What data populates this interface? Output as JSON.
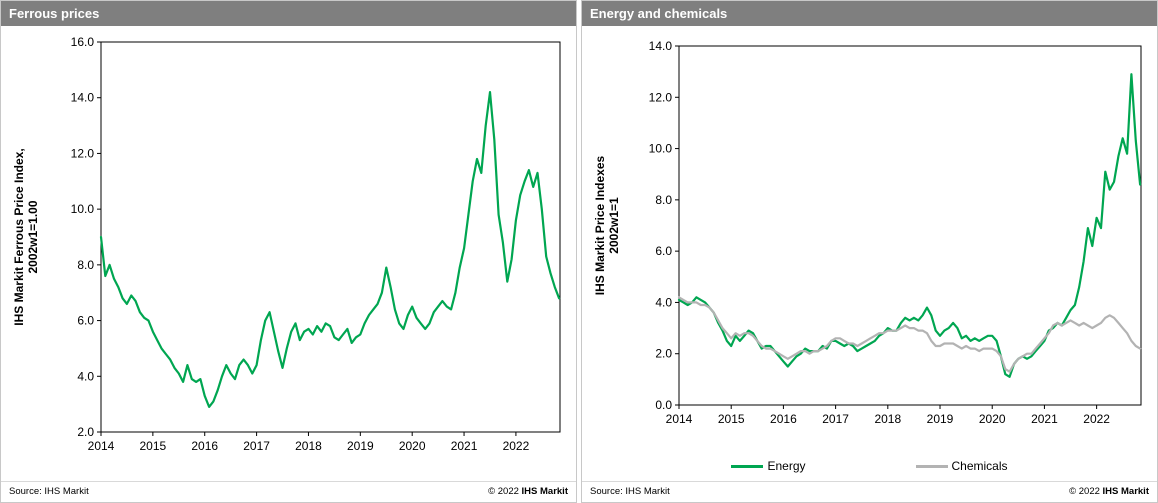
{
  "colors": {
    "header_bg": "#7f7f7f",
    "green": "#00a651",
    "gray": "#b3b3b3",
    "axis": "#000000"
  },
  "panels": [
    {
      "title": "Ferrous prices",
      "source": "Source: IHS Markit",
      "copyright_prefix": "© 2022",
      "copyright_brand": "IHS Markit"
    },
    {
      "title": "Energy and chemicals",
      "source": "Source: IHS Markit",
      "copyright_prefix": "© 2022",
      "copyright_brand": "IHS Markit"
    }
  ],
  "chart_data": [
    {
      "type": "line",
      "title": "Ferrous prices",
      "xlabel": "",
      "ylabel_lines": [
        "IHS Markit Ferrous Price Index,",
        "2002w1=1.00"
      ],
      "xlim": [
        2014,
        2022.85
      ],
      "ylim": [
        2.0,
        16.0
      ],
      "ytick_step": 2.0,
      "xticks": [
        2014,
        2015,
        2016,
        2017,
        2018,
        2019,
        2020,
        2021,
        2022
      ],
      "grid": false,
      "legend_position": "none",
      "x_start": 2014.0,
      "x_step": 0.0833333,
      "series": [
        {
          "name": "Ferrous",
          "color": "#00a651",
          "values": [
            9.0,
            7.6,
            8.0,
            7.5,
            7.2,
            6.8,
            6.6,
            6.9,
            6.7,
            6.3,
            6.1,
            6.0,
            5.6,
            5.3,
            5.0,
            4.8,
            4.6,
            4.3,
            4.1,
            3.8,
            4.4,
            3.9,
            3.8,
            3.9,
            3.3,
            2.9,
            3.1,
            3.5,
            4.0,
            4.4,
            4.1,
            3.9,
            4.4,
            4.6,
            4.4,
            4.1,
            4.4,
            5.3,
            6.0,
            6.3,
            5.6,
            4.9,
            4.3,
            5.0,
            5.6,
            5.9,
            5.3,
            5.6,
            5.7,
            5.5,
            5.8,
            5.6,
            5.9,
            5.8,
            5.4,
            5.3,
            5.5,
            5.7,
            5.2,
            5.4,
            5.5,
            5.9,
            6.2,
            6.4,
            6.6,
            7.0,
            7.9,
            7.2,
            6.4,
            5.9,
            5.7,
            6.2,
            6.5,
            6.1,
            5.9,
            5.7,
            5.9,
            6.3,
            6.5,
            6.7,
            6.5,
            6.4,
            7.0,
            7.9,
            8.6,
            9.8,
            11.0,
            11.8,
            11.3,
            13.0,
            14.2,
            12.5,
            9.8,
            8.8,
            7.4,
            8.2,
            9.6,
            10.5,
            11.0,
            11.4,
            10.8,
            11.3,
            10.0,
            8.3,
            7.7,
            7.2,
            6.8
          ]
        }
      ]
    },
    {
      "type": "line",
      "title": "Energy and chemicals",
      "xlabel": "",
      "ylabel_lines": [
        "IHS Markit Price Indexes",
        "2002w1=1"
      ],
      "xlim": [
        2014,
        2022.85
      ],
      "ylim": [
        0.0,
        14.0
      ],
      "ytick_step": 2.0,
      "xticks": [
        2014,
        2015,
        2016,
        2017,
        2018,
        2019,
        2020,
        2021,
        2022
      ],
      "grid": false,
      "legend_position": "bottom",
      "x_start": 2014.0,
      "x_step": 0.0833333,
      "series": [
        {
          "name": "Energy",
          "color": "#00a651",
          "values": [
            4.1,
            4.0,
            3.9,
            4.0,
            4.2,
            4.1,
            4.0,
            3.8,
            3.6,
            3.2,
            2.9,
            2.5,
            2.3,
            2.7,
            2.5,
            2.7,
            2.9,
            2.8,
            2.5,
            2.2,
            2.3,
            2.3,
            2.1,
            1.9,
            1.7,
            1.5,
            1.7,
            1.9,
            2.0,
            2.2,
            2.1,
            2.1,
            2.1,
            2.3,
            2.2,
            2.5,
            2.5,
            2.4,
            2.3,
            2.4,
            2.3,
            2.1,
            2.2,
            2.3,
            2.4,
            2.5,
            2.7,
            2.8,
            3.0,
            2.9,
            2.9,
            3.2,
            3.4,
            3.3,
            3.4,
            3.3,
            3.5,
            3.8,
            3.5,
            2.9,
            2.7,
            2.9,
            3.0,
            3.2,
            3.0,
            2.6,
            2.7,
            2.5,
            2.6,
            2.5,
            2.6,
            2.7,
            2.7,
            2.5,
            1.9,
            1.2,
            1.1,
            1.6,
            1.8,
            1.9,
            1.8,
            1.9,
            2.1,
            2.3,
            2.5,
            2.9,
            3.0,
            3.2,
            3.1,
            3.4,
            3.7,
            3.9,
            4.6,
            5.6,
            6.9,
            6.2,
            7.3,
            6.9,
            9.1,
            8.4,
            8.7,
            9.7,
            10.4,
            9.8,
            12.9,
            10.3,
            8.6
          ]
        },
        {
          "name": "Chemicals",
          "color": "#b3b3b3",
          "values": [
            4.2,
            4.1,
            4.0,
            4.0,
            4.0,
            3.9,
            3.9,
            3.8,
            3.6,
            3.3,
            3.0,
            2.8,
            2.6,
            2.8,
            2.7,
            2.8,
            2.8,
            2.7,
            2.5,
            2.3,
            2.2,
            2.2,
            2.1,
            2.0,
            1.9,
            1.8,
            1.9,
            2.0,
            2.1,
            2.1,
            2.0,
            2.1,
            2.1,
            2.2,
            2.3,
            2.5,
            2.6,
            2.6,
            2.5,
            2.4,
            2.4,
            2.3,
            2.4,
            2.5,
            2.6,
            2.7,
            2.8,
            2.8,
            2.9,
            2.9,
            2.9,
            3.0,
            3.1,
            3.0,
            3.0,
            2.9,
            2.9,
            2.8,
            2.5,
            2.3,
            2.3,
            2.4,
            2.4,
            2.4,
            2.3,
            2.2,
            2.3,
            2.2,
            2.2,
            2.1,
            2.2,
            2.2,
            2.2,
            2.1,
            1.9,
            1.4,
            1.3,
            1.6,
            1.8,
            1.9,
            2.0,
            2.0,
            2.2,
            2.4,
            2.6,
            2.8,
            3.1,
            3.2,
            3.1,
            3.2,
            3.3,
            3.2,
            3.1,
            3.2,
            3.1,
            3.0,
            3.1,
            3.2,
            3.4,
            3.5,
            3.4,
            3.2,
            3.0,
            2.8,
            2.5,
            2.3,
            2.2
          ]
        }
      ]
    }
  ]
}
